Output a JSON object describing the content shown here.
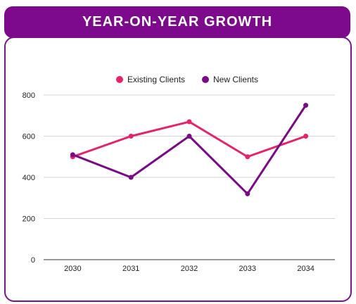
{
  "header": {
    "title": "YEAR-ON-YEAR GROWTH"
  },
  "colors": {
    "header_bg": "#7d0a8c",
    "card_border": "#7a1590"
  },
  "chart_data": {
    "type": "line",
    "x": [
      "2030",
      "2031",
      "2032",
      "2033",
      "2034"
    ],
    "ylim": [
      0,
      800
    ],
    "yticks": [
      "0",
      "200",
      "400",
      "600",
      "800"
    ],
    "grid": true,
    "legend_position": "top",
    "series": [
      {
        "name": "Existing Clients",
        "color": "#e8216b",
        "values": [
          500,
          600,
          670,
          500,
          600
        ]
      },
      {
        "name": "New Clients",
        "color": "#7b0a86",
        "values": [
          510,
          400,
          600,
          320,
          750
        ]
      }
    ]
  }
}
